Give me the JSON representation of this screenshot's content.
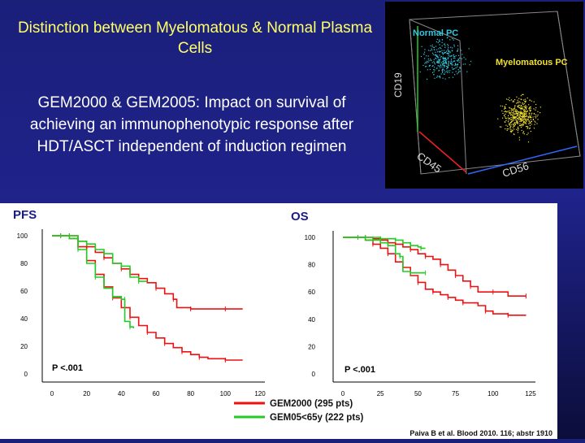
{
  "title": "Distinction between Myelomatous & Normal Plasma Cells",
  "subtitle": "GEM2000 & GEM2005: Impact on survival of achieving an immunophenotypic response after HDT/ASCT independent of induction regimen",
  "citation": "Paiva B et al. Blood 2010. 116; abstr 1910",
  "colors": {
    "gem2000": "#ee1111",
    "gem05": "#22cc22",
    "normal_pc": "#33c8e0",
    "myelo_pc": "#f0e030",
    "title": "#ffff66"
  },
  "chart_data": [
    {
      "type": "scatter",
      "dimensions": 3,
      "axes": [
        "CD19",
        "CD45",
        "CD56"
      ],
      "populations": [
        {
          "name": "Normal PC",
          "color": "#33c8e0",
          "region": "high CD19, low CD56"
        },
        {
          "name": "Myelomatous PC",
          "color": "#f0e030",
          "region": "low CD19, high CD56"
        }
      ]
    },
    {
      "type": "line",
      "title": "PFS",
      "xlim": [
        0,
        120
      ],
      "ylim": [
        0,
        100
      ],
      "xticks": [
        0,
        20,
        40,
        60,
        80,
        100,
        120
      ],
      "yticks": [
        0,
        20,
        40,
        60,
        80,
        100
      ],
      "annotation": "P <.001",
      "series": [
        {
          "name": "GEM2000 (295 pts)",
          "color": "#ee1111",
          "style": "red",
          "points": [
            [
              0,
              100
            ],
            [
              5,
              100
            ],
            [
              10,
              98
            ],
            [
              15,
              92
            ],
            [
              20,
              82
            ],
            [
              25,
              72
            ],
            [
              30,
              63
            ],
            [
              35,
              55
            ],
            [
              40,
              48
            ],
            [
              45,
              41
            ],
            [
              50,
              35
            ],
            [
              55,
              30
            ],
            [
              60,
              26
            ],
            [
              65,
              22
            ],
            [
              70,
              19
            ],
            [
              75,
              16
            ],
            [
              80,
              14
            ],
            [
              85,
              12
            ],
            [
              90,
              11
            ],
            [
              100,
              10
            ],
            [
              110,
              10
            ]
          ]
        },
        {
          "name": "GEM2000 (295 pts)",
          "color": "#ee1111",
          "style": "red",
          "points": [
            [
              0,
              100
            ],
            [
              10,
              100
            ],
            [
              15,
              96
            ],
            [
              20,
              92
            ],
            [
              25,
              88
            ],
            [
              30,
              84
            ],
            [
              35,
              80
            ],
            [
              40,
              76
            ],
            [
              45,
              72
            ],
            [
              50,
              69
            ],
            [
              55,
              66
            ],
            [
              60,
              62
            ],
            [
              65,
              58
            ],
            [
              70,
              54
            ],
            [
              72,
              48
            ],
            [
              80,
              47
            ],
            [
              90,
              47
            ],
            [
              100,
              47
            ],
            [
              110,
              47
            ]
          ]
        },
        {
          "name": "GEM05<65y (222 pts)",
          "color": "#22cc22",
          "style": "green",
          "points": [
            [
              0,
              100
            ],
            [
              5,
              100
            ],
            [
              10,
              98
            ],
            [
              15,
              90
            ],
            [
              20,
              80
            ],
            [
              25,
              70
            ],
            [
              30,
              62
            ],
            [
              35,
              56
            ],
            [
              40,
              54
            ],
            [
              42,
              54
            ],
            [
              42,
              38
            ],
            [
              45,
              34
            ],
            [
              47,
              33
            ]
          ]
        },
        {
          "name": "GEM05<65y (222 pts)",
          "color": "#22cc22",
          "style": "green",
          "points": [
            [
              0,
              100
            ],
            [
              10,
              100
            ],
            [
              15,
              96
            ],
            [
              20,
              94
            ],
            [
              25,
              90
            ],
            [
              30,
              87
            ],
            [
              35,
              80
            ],
            [
              40,
              78
            ],
            [
              45,
              70
            ],
            [
              50,
              67
            ],
            [
              55,
              67
            ]
          ]
        }
      ]
    },
    {
      "type": "line",
      "title": "OS",
      "xlim": [
        0,
        125
      ],
      "ylim": [
        0,
        100
      ],
      "xticks": [
        0,
        25,
        50,
        75,
        100,
        125
      ],
      "yticks": [
        0,
        20,
        40,
        60,
        80,
        100
      ],
      "annotation": "P <.001",
      "series": [
        {
          "name": "GEM2000 (295 pts)",
          "color": "#ee1111",
          "style": "red",
          "points": [
            [
              0,
              100
            ],
            [
              10,
              100
            ],
            [
              15,
              98
            ],
            [
              20,
              95
            ],
            [
              25,
              92
            ],
            [
              30,
              88
            ],
            [
              35,
              82
            ],
            [
              40,
              78
            ],
            [
              45,
              72
            ],
            [
              50,
              67
            ],
            [
              55,
              62
            ],
            [
              60,
              60
            ],
            [
              65,
              58
            ],
            [
              70,
              56
            ],
            [
              75,
              54
            ],
            [
              80,
              52
            ],
            [
              90,
              50
            ],
            [
              95,
              46
            ],
            [
              100,
              44
            ],
            [
              110,
              43
            ],
            [
              122,
              43
            ]
          ]
        },
        {
          "name": "GEM2000 (295 pts)",
          "color": "#ee1111",
          "style": "red",
          "points": [
            [
              0,
              100
            ],
            [
              15,
              100
            ],
            [
              20,
              99
            ],
            [
              25,
              98
            ],
            [
              30,
              96
            ],
            [
              35,
              95
            ],
            [
              40,
              93
            ],
            [
              45,
              91
            ],
            [
              50,
              88
            ],
            [
              55,
              86
            ],
            [
              60,
              84
            ],
            [
              65,
              80
            ],
            [
              70,
              76
            ],
            [
              75,
              72
            ],
            [
              80,
              68
            ],
            [
              85,
              64
            ],
            [
              90,
              60
            ],
            [
              100,
              60
            ],
            [
              110,
              57
            ],
            [
              122,
              57
            ]
          ]
        },
        {
          "name": "GEM05<65y (222 pts)",
          "color": "#22cc22",
          "style": "green",
          "points": [
            [
              0,
              100
            ],
            [
              10,
              100
            ],
            [
              15,
              98
            ],
            [
              20,
              98
            ],
            [
              25,
              96
            ],
            [
              30,
              94
            ],
            [
              35,
              88
            ],
            [
              38,
              86
            ],
            [
              40,
              75
            ],
            [
              45,
              74
            ],
            [
              50,
              74
            ],
            [
              55,
              74
            ]
          ]
        },
        {
          "name": "GEM05<65y (222 pts)",
          "color": "#22cc22",
          "style": "green",
          "points": [
            [
              0,
              100
            ],
            [
              15,
              100
            ],
            [
              20,
              100
            ],
            [
              25,
              99
            ],
            [
              30,
              99
            ],
            [
              35,
              98
            ],
            [
              40,
              96
            ],
            [
              45,
              94
            ],
            [
              50,
              93
            ],
            [
              52,
              92
            ],
            [
              55,
              92
            ]
          ]
        }
      ]
    }
  ],
  "cube_labels": {
    "normal": "Normal PC",
    "myelo": "Myelomatous PC",
    "cd19": "CD19",
    "cd45": "CD45",
    "cd56": "CD56"
  },
  "legend": [
    {
      "label": "GEM2000 (295 pts)",
      "color": "#ee1111"
    },
    {
      "label": "GEM05<65y (222 pts)",
      "color": "#22cc22"
    }
  ]
}
